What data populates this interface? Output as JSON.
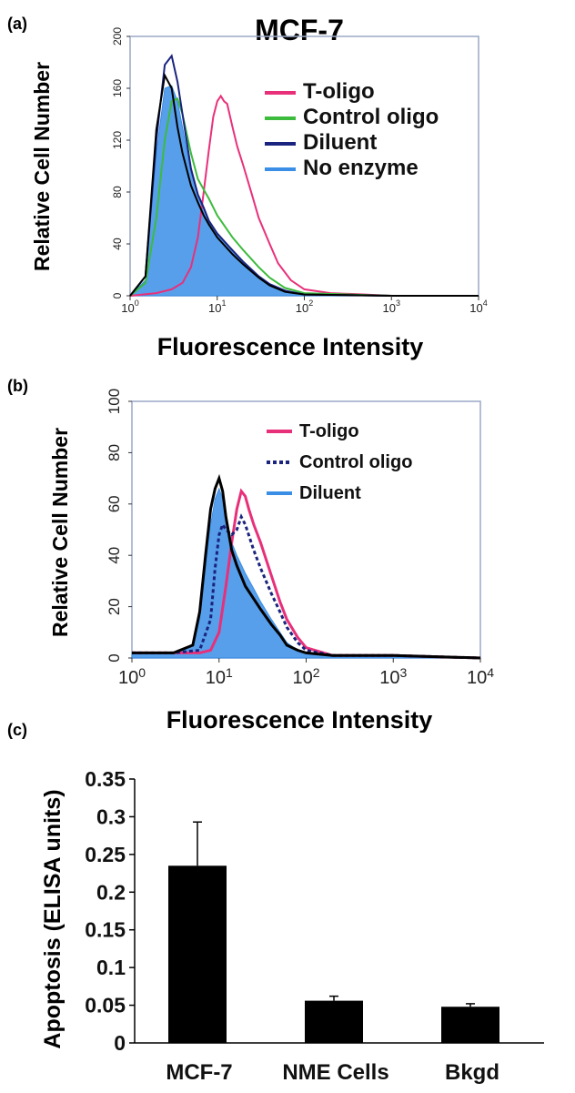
{
  "panels": {
    "a": {
      "label": "(a)",
      "title": "MCF-7"
    },
    "b": {
      "label": "(b)"
    },
    "c": {
      "label": "(c)"
    }
  },
  "chart_data": [
    {
      "id": "a",
      "type": "line",
      "title": "MCF-7",
      "xlabel": "Fluorescence Intensity",
      "ylabel": "Relative Cell Number",
      "xscale": "log",
      "xlim": [
        1,
        10000
      ],
      "ylim": [
        0,
        200
      ],
      "xticks": [
        "10^0",
        "10^1",
        "10^2",
        "10^3",
        "10^4"
      ],
      "yticks": [
        "0",
        "40",
        "80",
        "120",
        "160",
        "200"
      ],
      "legend_position": "top-right",
      "series": [
        {
          "name": "T-oligo",
          "color": "#e8307a",
          "style": "line",
          "x": [
            1,
            2,
            3,
            4,
            5,
            6,
            7,
            8,
            9,
            10,
            11,
            12,
            13,
            15,
            17,
            20,
            25,
            30,
            40,
            50,
            70,
            100,
            200,
            500,
            1000,
            10000
          ],
          "y": [
            0,
            2,
            5,
            10,
            22,
            45,
            80,
            112,
            138,
            150,
            154,
            150,
            148,
            130,
            115,
            100,
            78,
            60,
            40,
            25,
            12,
            5,
            2,
            1,
            0,
            0
          ]
        },
        {
          "name": "Control oligo",
          "color": "#3dbb3d",
          "style": "line",
          "x": [
            1,
            1.5,
            2,
            2.5,
            3,
            3.5,
            4,
            5,
            6,
            7,
            8,
            10,
            15,
            20,
            30,
            40,
            60,
            100,
            1000,
            10000
          ],
          "y": [
            0,
            10,
            60,
            120,
            150,
            152,
            140,
            110,
            90,
            82,
            75,
            62,
            45,
            35,
            22,
            14,
            6,
            2,
            0,
            0
          ]
        },
        {
          "name": "Diluent",
          "color": "#1a237e",
          "style": "line",
          "x": [
            1,
            1.5,
            2,
            2.5,
            3,
            3.5,
            4,
            5,
            6,
            7,
            8,
            10,
            15,
            20,
            30,
            40,
            60,
            100,
            1000,
            10000
          ],
          "y": [
            0,
            15,
            120,
            178,
            185,
            165,
            140,
            98,
            78,
            68,
            58,
            48,
            35,
            26,
            15,
            9,
            4,
            1,
            0,
            0
          ]
        },
        {
          "name": "No enzyme",
          "color": "#3a8ee6",
          "style": "fill",
          "x": [
            1,
            1.5,
            2,
            2.5,
            3,
            3.5,
            4,
            5,
            6,
            7,
            8,
            10,
            15,
            20,
            30,
            40,
            60,
            100,
            1000,
            10000
          ],
          "y": [
            0,
            12,
            110,
            160,
            162,
            150,
            130,
            95,
            78,
            68,
            58,
            48,
            35,
            26,
            15,
            9,
            4,
            1,
            0,
            0
          ]
        },
        {
          "name": "",
          "color": "#000000",
          "style": "line",
          "x": [
            1,
            1.5,
            2,
            2.5,
            3,
            3.5,
            4,
            5,
            6,
            7,
            8,
            10,
            15,
            20,
            30,
            40,
            60,
            100,
            1000,
            10000
          ],
          "y": [
            0,
            15,
            128,
            170,
            160,
            130,
            110,
            85,
            72,
            62,
            55,
            45,
            32,
            24,
            14,
            8,
            3,
            1,
            0,
            0
          ]
        }
      ]
    },
    {
      "id": "b",
      "type": "line",
      "xlabel": "Fluorescence Intensity",
      "ylabel": "Relative Cell Number",
      "xscale": "log",
      "xlim": [
        1,
        10000
      ],
      "ylim": [
        0,
        100
      ],
      "xticks": [
        "10^0",
        "10^1",
        "10^2",
        "10^3",
        "10^4"
      ],
      "yticks": [
        "0",
        "20",
        "40",
        "60",
        "80",
        "100"
      ],
      "legend_position": "top-right",
      "series": [
        {
          "name": "T-oligo",
          "color": "#e8307a",
          "style": "line",
          "x": [
            1,
            3,
            6,
            8,
            10,
            12,
            14,
            16,
            18,
            20,
            22,
            25,
            30,
            40,
            50,
            60,
            80,
            100,
            200,
            1000,
            10000
          ],
          "y": [
            2,
            2,
            2,
            3,
            10,
            28,
            45,
            58,
            65,
            63,
            58,
            52,
            45,
            32,
            22,
            15,
            8,
            4,
            1,
            1,
            0
          ]
        },
        {
          "name": "Control oligo",
          "color": "#1a237e",
          "style": "dotted",
          "x": [
            1,
            3,
            6,
            8,
            9,
            10,
            11,
            12,
            14,
            16,
            18,
            20,
            25,
            30,
            40,
            50,
            60,
            80,
            100,
            200,
            1000,
            10000
          ],
          "y": [
            2,
            2,
            3,
            15,
            35,
            48,
            52,
            50,
            48,
            50,
            55,
            52,
            42,
            35,
            25,
            18,
            12,
            6,
            3,
            1,
            1,
            0
          ]
        },
        {
          "name": "Diluent",
          "color": "#3a8ee6",
          "style": "fill",
          "x": [
            1,
            3,
            5,
            6,
            7,
            8,
            9,
            10,
            11,
            12,
            14,
            16,
            20,
            25,
            30,
            40,
            50,
            60,
            80,
            100,
            200,
            1000,
            10000
          ],
          "y": [
            2,
            2,
            5,
            15,
            35,
            52,
            62,
            66,
            62,
            55,
            45,
            40,
            33,
            27,
            22,
            15,
            10,
            6,
            3,
            2,
            1,
            1,
            0
          ]
        },
        {
          "name": "",
          "color": "#000000",
          "style": "line",
          "x": [
            1,
            3,
            5,
            6,
            7,
            8,
            9,
            10,
            11,
            12,
            14,
            16,
            20,
            25,
            30,
            40,
            50,
            60,
            80,
            100,
            200,
            1000,
            10000
          ],
          "y": [
            2,
            2,
            5,
            18,
            40,
            58,
            66,
            70,
            65,
            55,
            42,
            36,
            28,
            23,
            19,
            13,
            9,
            5,
            3,
            2,
            1,
            1,
            0
          ]
        }
      ]
    },
    {
      "id": "c",
      "type": "bar",
      "ylabel": "Apoptosis (ELISA units)",
      "ylim": [
        0,
        0.35
      ],
      "yticks": [
        "0",
        "0.05",
        "0.1",
        "0.15",
        "0.2",
        "0.25",
        "0.3",
        "0.35"
      ],
      "categories": [
        "MCF-7",
        "NME Cells",
        "Bkgd"
      ],
      "values": [
        0.235,
        0.056,
        0.048
      ],
      "errors": [
        0.058,
        0.006,
        0.004
      ],
      "bar_color": "#000000"
    }
  ]
}
